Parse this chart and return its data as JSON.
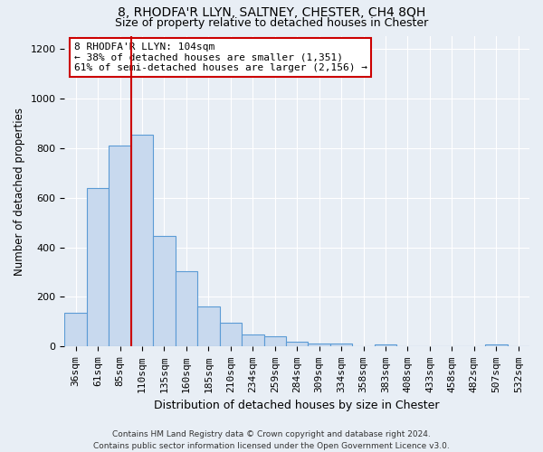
{
  "title": "8, RHODFA'R LLYN, SALTNEY, CHESTER, CH4 8QH",
  "subtitle": "Size of property relative to detached houses in Chester",
  "xlabel": "Distribution of detached houses by size in Chester",
  "ylabel": "Number of detached properties",
  "categories": [
    "36sqm",
    "61sqm",
    "85sqm",
    "110sqm",
    "135sqm",
    "160sqm",
    "185sqm",
    "210sqm",
    "234sqm",
    "259sqm",
    "284sqm",
    "309sqm",
    "334sqm",
    "358sqm",
    "383sqm",
    "408sqm",
    "433sqm",
    "458sqm",
    "482sqm",
    "507sqm",
    "532sqm"
  ],
  "values": [
    135,
    640,
    810,
    855,
    445,
    305,
    160,
    98,
    50,
    40,
    20,
    14,
    12,
    0,
    10,
    0,
    0,
    0,
    0,
    8,
    0
  ],
  "bar_color": "#c8d9ee",
  "bar_edge_color": "#5b9bd5",
  "vline_color": "#cc0000",
  "annotation_box_text": "8 RHODFA'R LLYN: 104sqm\n← 38% of detached houses are smaller (1,351)\n61% of semi-detached houses are larger (2,156) →",
  "annotation_box_edge_color": "#cc0000",
  "ylim": [
    0,
    1250
  ],
  "yticks": [
    0,
    200,
    400,
    600,
    800,
    1000,
    1200
  ],
  "title_fontsize": 10,
  "subtitle_fontsize": 9,
  "xlabel_fontsize": 9,
  "ylabel_fontsize": 8.5,
  "tick_fontsize": 8,
  "annotation_fontsize": 8,
  "footer": "Contains HM Land Registry data © Crown copyright and database right 2024.\nContains public sector information licensed under the Open Government Licence v3.0.",
  "footer_fontsize": 6.5,
  "background_color": "#e8eef5",
  "plot_background_color": "#e8eef5",
  "grid_color": "#ffffff"
}
